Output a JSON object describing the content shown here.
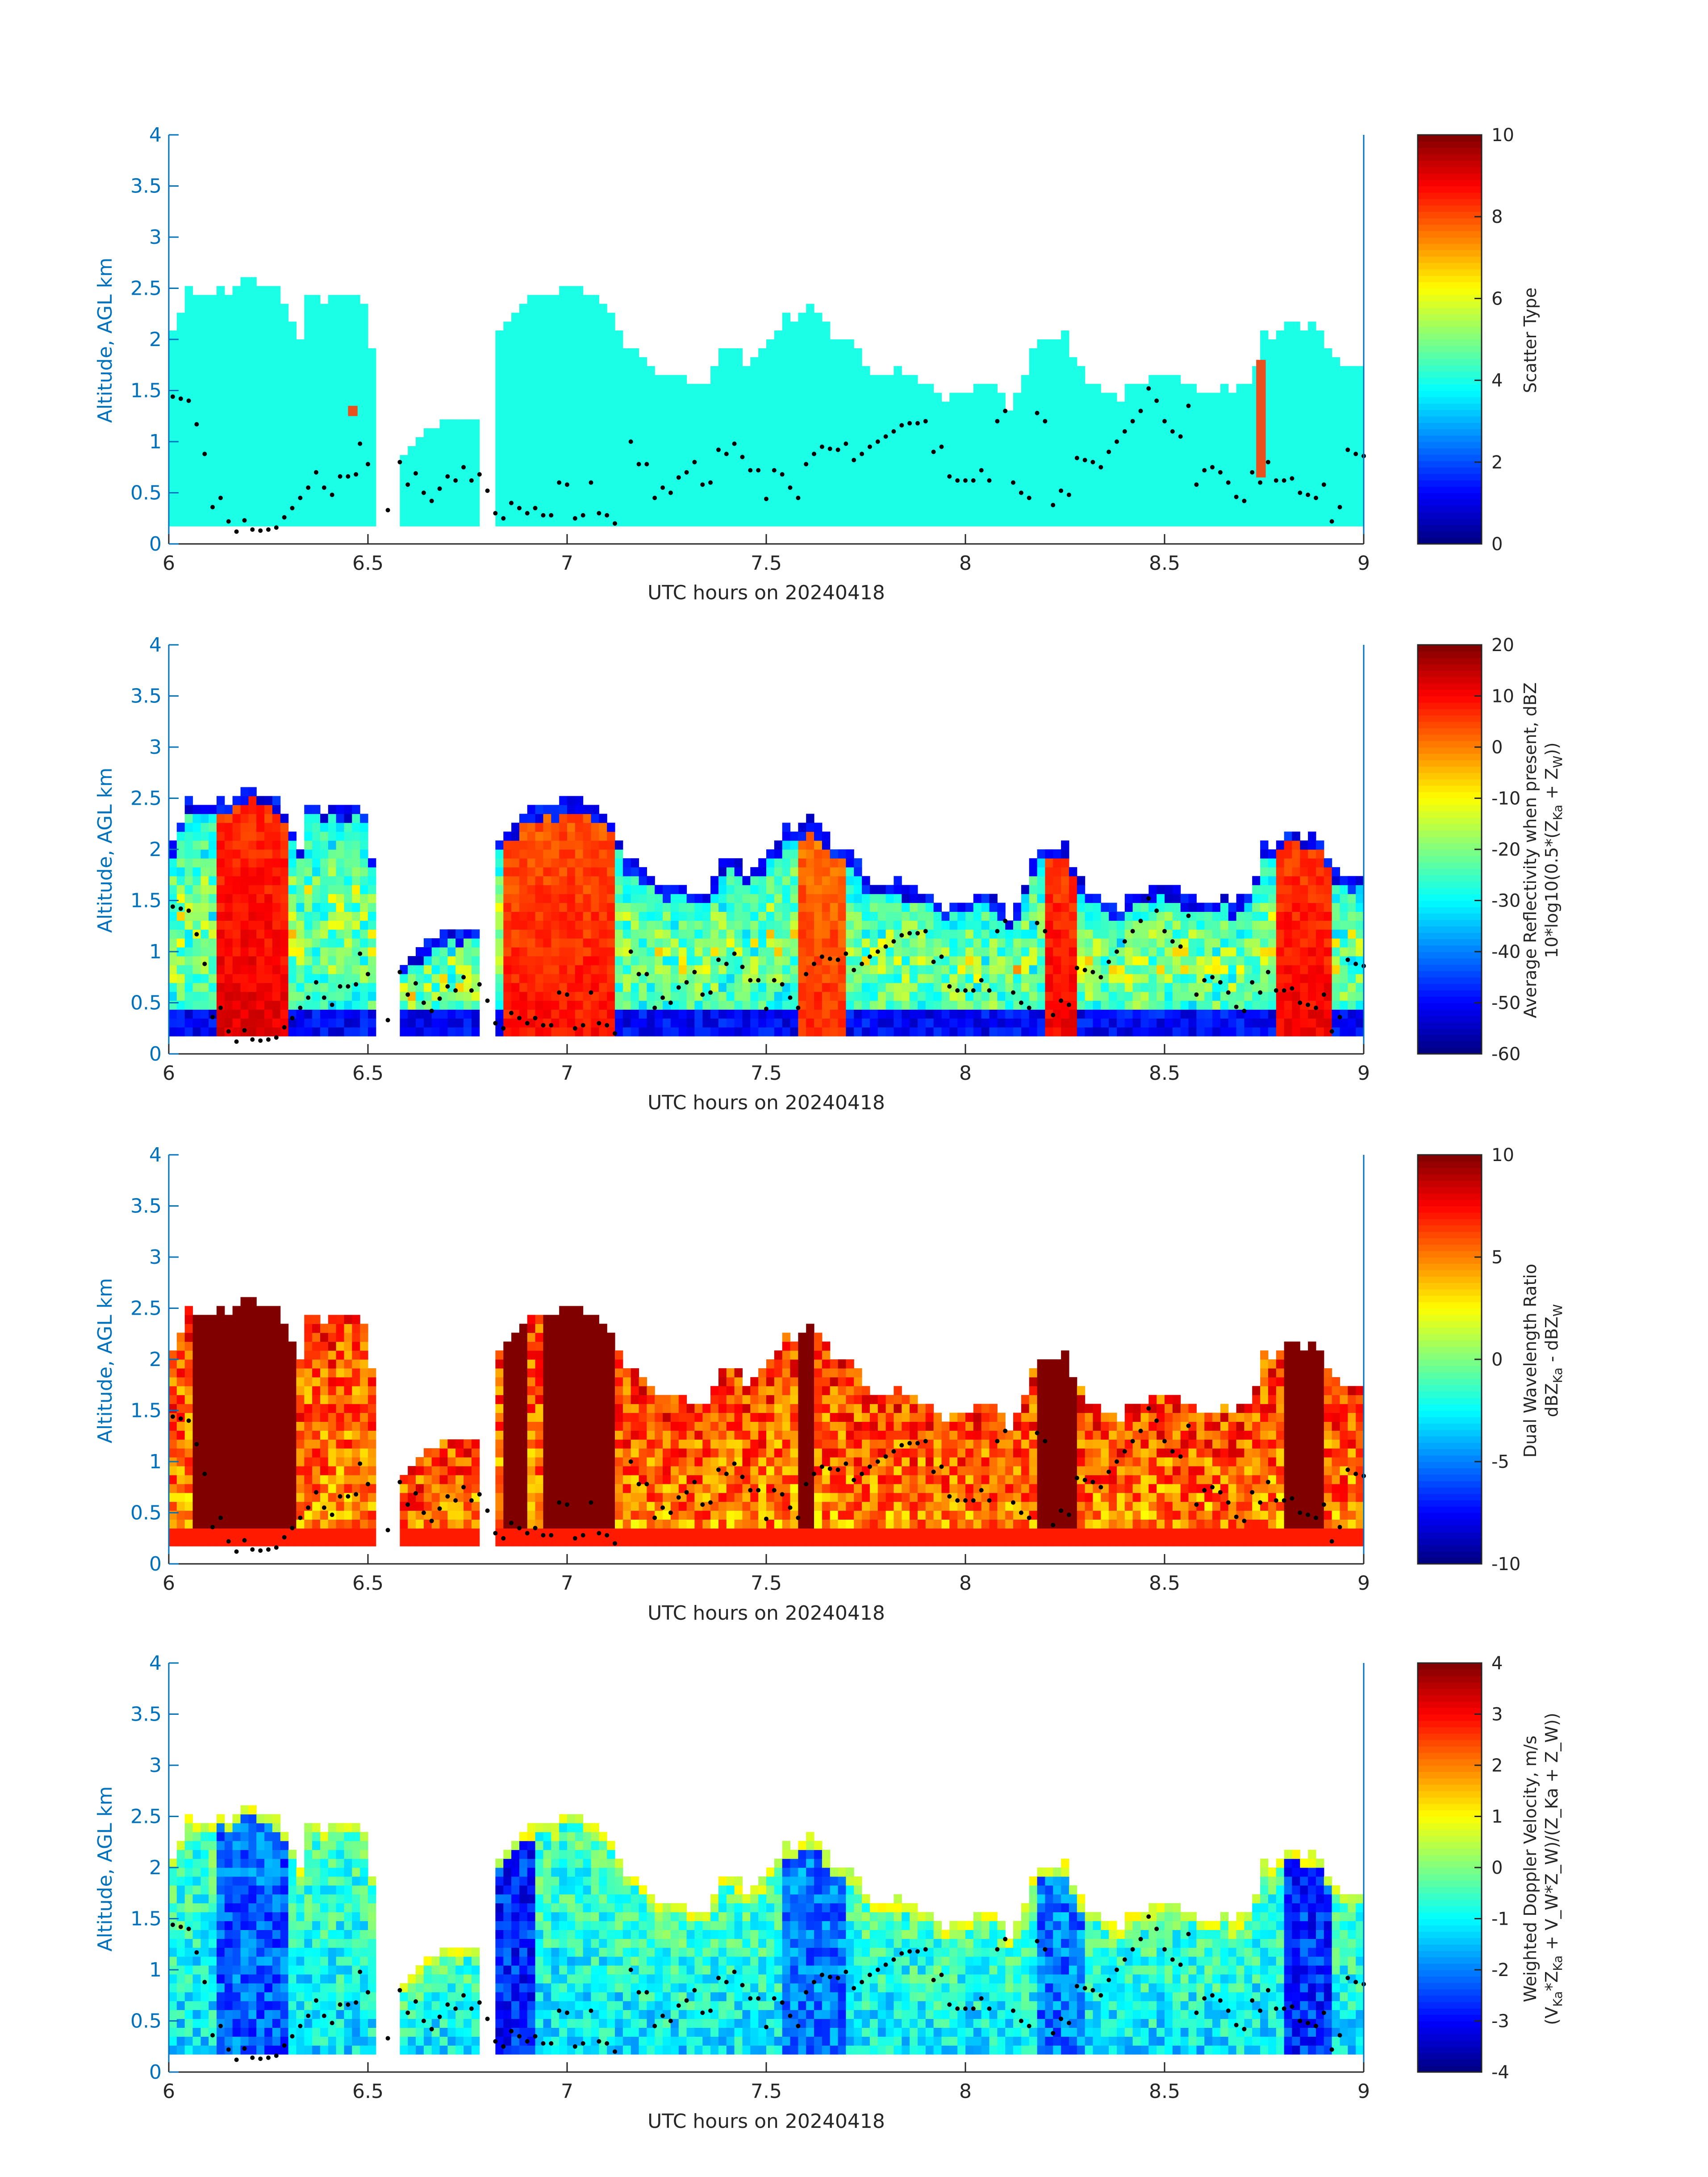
{
  "figure": {
    "background": "#ffffff"
  },
  "colors": {
    "axis_blue": "#0072BD",
    "text": "#262626",
    "dot": "#000000",
    "scatter_type_fill": "#23F0DC",
    "scatter_type_accent": "#E8501E"
  },
  "chart_data": [
    {
      "type": "heatmap",
      "xlabel": "UTC hours on 20240418",
      "ylabel": "Altitude, AGL km",
      "xlim": [
        6,
        9
      ],
      "ylim": [
        0,
        4
      ],
      "x_ticks": [
        "6",
        "6.5",
        "7",
        "7.5",
        "8",
        "8.5",
        "9"
      ],
      "y_ticks": [
        "0",
        "0.5",
        "1",
        "1.5",
        "2",
        "2.5",
        "3",
        "3.5",
        "4"
      ],
      "colorbar": {
        "label": "Scatter Type",
        "ticks": [
          "0",
          "2",
          "4",
          "6",
          "8",
          "10"
        ],
        "range": [
          0,
          10
        ],
        "colormap": "jet"
      },
      "field_kind": "type",
      "cloud_top_km": [
        [
          6.0,
          2.0
        ],
        [
          6.05,
          2.45
        ],
        [
          6.15,
          2.5
        ],
        [
          6.22,
          2.65
        ],
        [
          6.28,
          2.5
        ],
        [
          6.33,
          2.05
        ],
        [
          6.35,
          2.45
        ],
        [
          6.5,
          2.4
        ],
        [
          6.52,
          1.6
        ],
        [
          6.58,
          0.9
        ],
        [
          6.65,
          1.1
        ],
        [
          6.7,
          1.2
        ],
        [
          6.78,
          1.2
        ],
        [
          6.82,
          2.05
        ],
        [
          6.9,
          2.35
        ],
        [
          7.0,
          2.5
        ],
        [
          7.1,
          2.35
        ],
        [
          7.15,
          1.9
        ],
        [
          7.25,
          1.6
        ],
        [
          7.35,
          1.6
        ],
        [
          7.4,
          2.0
        ],
        [
          7.45,
          1.75
        ],
        [
          7.55,
          2.2
        ],
        [
          7.6,
          2.3
        ],
        [
          7.7,
          2.0
        ],
        [
          7.75,
          1.75
        ],
        [
          7.8,
          1.7
        ],
        [
          7.9,
          1.6
        ],
        [
          7.95,
          1.4
        ],
        [
          8.05,
          1.6
        ],
        [
          8.12,
          1.3
        ],
        [
          8.18,
          1.95
        ],
        [
          8.25,
          2.05
        ],
        [
          8.3,
          1.6
        ],
        [
          8.38,
          1.4
        ],
        [
          8.45,
          1.65
        ],
        [
          8.55,
          1.6
        ],
        [
          8.62,
          1.5
        ],
        [
          8.7,
          1.5
        ],
        [
          8.75,
          2.0
        ],
        [
          8.82,
          2.2
        ],
        [
          8.9,
          2.05
        ],
        [
          8.95,
          1.75
        ],
        [
          9.0,
          1.7
        ]
      ],
      "gaps_hours": [
        [
          6.52,
          6.57
        ],
        [
          6.79,
          6.82
        ]
      ],
      "accent_columns": [
        {
          "x": 8.73,
          "bottom": 0.65,
          "top": 1.8,
          "value": 8
        },
        {
          "x": 6.45,
          "bottom": 1.25,
          "top": 1.35,
          "value": 8
        }
      ],
      "dots": [
        [
          6.01,
          1.44
        ],
        [
          6.03,
          1.42
        ],
        [
          6.05,
          1.4
        ],
        [
          6.07,
          1.17
        ],
        [
          6.09,
          0.88
        ],
        [
          6.11,
          0.36
        ],
        [
          6.13,
          0.45
        ],
        [
          6.15,
          0.22
        ],
        [
          6.17,
          0.12
        ],
        [
          6.19,
          0.23
        ],
        [
          6.21,
          0.14
        ],
        [
          6.23,
          0.13
        ],
        [
          6.25,
          0.14
        ],
        [
          6.27,
          0.16
        ],
        [
          6.29,
          0.26
        ],
        [
          6.31,
          0.35
        ],
        [
          6.33,
          0.45
        ],
        [
          6.35,
          0.55
        ],
        [
          6.37,
          0.7
        ],
        [
          6.39,
          0.55
        ],
        [
          6.41,
          0.48
        ],
        [
          6.43,
          0.66
        ],
        [
          6.45,
          0.66
        ],
        [
          6.47,
          0.68
        ],
        [
          6.48,
          0.98
        ],
        [
          6.5,
          0.78
        ],
        [
          6.55,
          0.33
        ],
        [
          6.58,
          0.8
        ],
        [
          6.6,
          0.58
        ],
        [
          6.62,
          0.69
        ],
        [
          6.64,
          0.5
        ],
        [
          6.66,
          0.42
        ],
        [
          6.68,
          0.54
        ],
        [
          6.7,
          0.66
        ],
        [
          6.72,
          0.62
        ],
        [
          6.74,
          0.75
        ],
        [
          6.76,
          0.62
        ],
        [
          6.78,
          0.68
        ],
        [
          6.8,
          0.52
        ],
        [
          6.82,
          0.3
        ],
        [
          6.84,
          0.25
        ],
        [
          6.86,
          0.4
        ],
        [
          6.88,
          0.35
        ],
        [
          6.9,
          0.3
        ],
        [
          6.92,
          0.35
        ],
        [
          6.94,
          0.28
        ],
        [
          6.96,
          0.28
        ],
        [
          6.98,
          0.6
        ],
        [
          7.0,
          0.58
        ],
        [
          7.02,
          0.25
        ],
        [
          7.04,
          0.28
        ],
        [
          7.06,
          0.6
        ],
        [
          7.08,
          0.3
        ],
        [
          7.1,
          0.28
        ],
        [
          7.12,
          0.2
        ],
        [
          7.16,
          1.0
        ],
        [
          7.18,
          0.78
        ],
        [
          7.2,
          0.78
        ],
        [
          7.22,
          0.45
        ],
        [
          7.24,
          0.55
        ],
        [
          7.26,
          0.5
        ],
        [
          7.28,
          0.65
        ],
        [
          7.3,
          0.7
        ],
        [
          7.32,
          0.8
        ],
        [
          7.34,
          0.58
        ],
        [
          7.36,
          0.6
        ],
        [
          7.38,
          0.92
        ],
        [
          7.4,
          0.88
        ],
        [
          7.42,
          0.98
        ],
        [
          7.44,
          0.85
        ],
        [
          7.46,
          0.72
        ],
        [
          7.48,
          0.72
        ],
        [
          7.5,
          0.44
        ],
        [
          7.52,
          0.72
        ],
        [
          7.54,
          0.68
        ],
        [
          7.56,
          0.55
        ],
        [
          7.58,
          0.45
        ],
        [
          7.6,
          0.78
        ],
        [
          7.62,
          0.88
        ],
        [
          7.64,
          0.95
        ],
        [
          7.66,
          0.93
        ],
        [
          7.68,
          0.92
        ],
        [
          7.7,
          0.98
        ],
        [
          7.72,
          0.82
        ],
        [
          7.74,
          0.88
        ],
        [
          7.76,
          0.95
        ],
        [
          7.78,
          1.0
        ],
        [
          7.8,
          1.05
        ],
        [
          7.82,
          1.1
        ],
        [
          7.84,
          1.16
        ],
        [
          7.86,
          1.18
        ],
        [
          7.88,
          1.18
        ],
        [
          7.9,
          1.2
        ],
        [
          7.92,
          0.9
        ],
        [
          7.94,
          0.95
        ],
        [
          7.96,
          0.66
        ],
        [
          7.98,
          0.62
        ],
        [
          8.0,
          0.62
        ],
        [
          8.02,
          0.62
        ],
        [
          8.04,
          0.72
        ],
        [
          8.06,
          0.62
        ],
        [
          8.08,
          1.2
        ],
        [
          8.1,
          1.3
        ],
        [
          8.12,
          0.6
        ],
        [
          8.14,
          0.5
        ],
        [
          8.16,
          0.45
        ],
        [
          8.18,
          1.28
        ],
        [
          8.2,
          1.2
        ],
        [
          8.22,
          0.38
        ],
        [
          8.24,
          0.52
        ],
        [
          8.26,
          0.48
        ],
        [
          8.28,
          0.84
        ],
        [
          8.3,
          0.82
        ],
        [
          8.32,
          0.8
        ],
        [
          8.34,
          0.75
        ],
        [
          8.36,
          0.9
        ],
        [
          8.38,
          1.0
        ],
        [
          8.4,
          1.1
        ],
        [
          8.42,
          1.2
        ],
        [
          8.44,
          1.3
        ],
        [
          8.46,
          1.52
        ],
        [
          8.48,
          1.4
        ],
        [
          8.5,
          1.2
        ],
        [
          8.52,
          1.1
        ],
        [
          8.54,
          1.05
        ],
        [
          8.56,
          1.35
        ],
        [
          8.58,
          0.58
        ],
        [
          8.6,
          0.72
        ],
        [
          8.62,
          0.75
        ],
        [
          8.64,
          0.7
        ],
        [
          8.66,
          0.6
        ],
        [
          8.68,
          0.46
        ],
        [
          8.7,
          0.42
        ],
        [
          8.72,
          0.7
        ],
        [
          8.74,
          0.6
        ],
        [
          8.76,
          0.8
        ],
        [
          8.78,
          0.62
        ],
        [
          8.8,
          0.62
        ],
        [
          8.82,
          0.64
        ],
        [
          8.84,
          0.5
        ],
        [
          8.86,
          0.48
        ],
        [
          8.88,
          0.45
        ],
        [
          8.9,
          0.58
        ],
        [
          8.92,
          0.22
        ],
        [
          8.94,
          0.36
        ],
        [
          8.96,
          0.92
        ],
        [
          8.98,
          0.88
        ],
        [
          9.0,
          0.86
        ]
      ]
    },
    {
      "type": "heatmap",
      "xlabel": "UTC hours on 20240418",
      "ylabel": "Altitude, AGL km",
      "xlim": [
        6,
        9
      ],
      "ylim": [
        0,
        4
      ],
      "x_ticks": [
        "6",
        "6.5",
        "7",
        "7.5",
        "8",
        "8.5",
        "9"
      ],
      "y_ticks": [
        "0",
        "0.5",
        "1",
        "1.5",
        "2",
        "2.5",
        "3",
        "3.5",
        "4"
      ],
      "colorbar": {
        "label_line1": "Average Reflectivity when present, dBZ",
        "label_line2": "10*log10(0.5*(Z",
        "label_sub1": "Ka",
        "label_mid": " + Z",
        "label_sub2": "W",
        "label_end": "))",
        "ticks": [
          "-60",
          "-50",
          "-40",
          "-30",
          "-20",
          "-10",
          "0",
          "10",
          "20"
        ],
        "range": [
          -60,
          20
        ],
        "colormap": "jet"
      },
      "field_kind": "reflectivity",
      "cores": [
        [
          6.12,
          6.3,
          15
        ],
        [
          6.85,
          7.12,
          12
        ],
        [
          7.58,
          7.7,
          10
        ],
        [
          8.2,
          8.27,
          14
        ],
        [
          8.78,
          8.92,
          14
        ]
      ]
    },
    {
      "type": "heatmap",
      "xlabel": "UTC hours on 20240418",
      "ylabel": "Altitude, AGL km",
      "xlim": [
        6,
        9
      ],
      "ylim": [
        0,
        4
      ],
      "x_ticks": [
        "6",
        "6.5",
        "7",
        "7.5",
        "8",
        "8.5",
        "9"
      ],
      "y_ticks": [
        "0",
        "0.5",
        "1",
        "1.5",
        "2",
        "2.5",
        "3",
        "3.5",
        "4"
      ],
      "colorbar": {
        "label_line1": "Dual Wavelength Ratio",
        "label_line2": "dBZ",
        "label_sub1": "Ka",
        "label_mid": " - dBZ",
        "label_sub2": "W",
        "label_end": "",
        "ticks": [
          "-10",
          "-5",
          "0",
          "5",
          "10"
        ],
        "range": [
          -10,
          10
        ],
        "colormap": "jet"
      },
      "field_kind": "dwr",
      "cores": [
        [
          6.06,
          6.31,
          10
        ],
        [
          6.84,
          6.9,
          10
        ],
        [
          6.95,
          7.12,
          10
        ],
        [
          7.58,
          7.61,
          10
        ],
        [
          8.19,
          8.29,
          10
        ],
        [
          8.81,
          8.9,
          10
        ]
      ]
    },
    {
      "type": "heatmap",
      "xlabel": "UTC hours on 20240418",
      "ylabel": "Altitude, AGL km",
      "xlim": [
        6,
        9
      ],
      "ylim": [
        0,
        4
      ],
      "x_ticks": [
        "6",
        "6.5",
        "7",
        "7.5",
        "8",
        "8.5",
        "9"
      ],
      "y_ticks": [
        "0",
        "0.5",
        "1",
        "1.5",
        "2",
        "2.5",
        "3",
        "3.5",
        "4"
      ],
      "colorbar": {
        "label_line1": "Weighted Doppler Velocity, m/s",
        "label_line2": "(V",
        "label_sub1": "Ka",
        "label_mid": "*Z",
        "label_sub2": "Ka",
        "label_end": " + V_W*Z_W)/(Z_Ka + Z_W))",
        "ticks": [
          "-4",
          "-3",
          "-2",
          "-1",
          "0",
          "1",
          "2",
          "3",
          "4"
        ],
        "range": [
          -4,
          4
        ],
        "colormap": "jet"
      },
      "field_kind": "velocity",
      "cores": [
        [
          6.12,
          6.3,
          -3
        ],
        [
          6.82,
          6.92,
          -3.5
        ],
        [
          7.55,
          7.7,
          -2.8
        ],
        [
          8.18,
          8.3,
          -2.8
        ],
        [
          8.8,
          8.92,
          -3.4
        ]
      ]
    }
  ]
}
